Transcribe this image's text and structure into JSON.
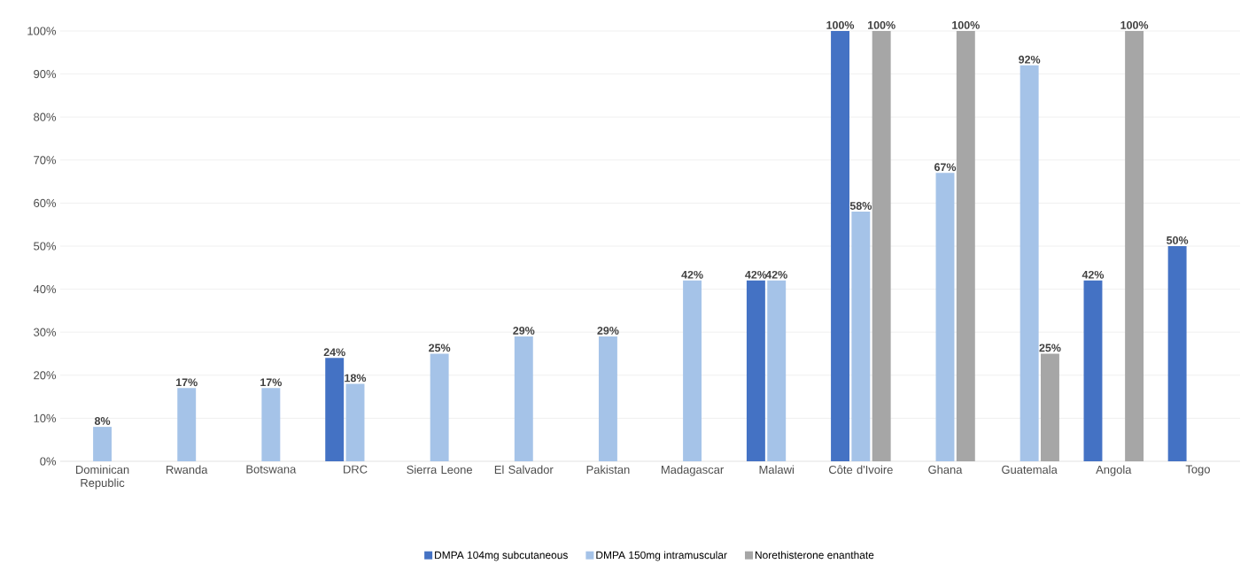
{
  "chart_data": {
    "type": "bar",
    "categories": [
      "Dominican Republic",
      "Rwanda",
      "Botswana",
      "DRC",
      "Sierra Leone",
      "El Salvador",
      "Pakistan",
      "Madagascar",
      "Malawi",
      "Côte d'Ivoire",
      "Ghana",
      "Guatemala",
      "Angola",
      "Togo"
    ],
    "series": [
      {
        "name": "DMPA 104mg subcutaneous",
        "color": "#4472c4",
        "values": [
          null,
          null,
          null,
          24,
          null,
          null,
          null,
          null,
          42,
          100,
          null,
          null,
          42,
          50
        ],
        "value_labels": [
          null,
          null,
          null,
          "24%",
          null,
          null,
          null,
          null,
          "42%",
          "100%",
          null,
          null,
          "42%",
          "50%"
        ]
      },
      {
        "name": "DMPA 150mg intramuscular",
        "color": "#a5c3e8",
        "values": [
          8,
          17,
          17,
          18,
          25,
          29,
          29,
          42,
          42,
          58,
          67,
          92,
          null,
          null
        ],
        "value_labels": [
          "8%",
          "17%",
          "17%",
          "18%",
          "25%",
          "29%",
          "29%",
          "42%",
          "42%",
          "58%",
          "67%",
          "92%",
          null,
          null
        ]
      },
      {
        "name": "Norethisterone enanthate",
        "color": "#a6a6a6",
        "values": [
          null,
          null,
          null,
          null,
          null,
          null,
          null,
          null,
          null,
          100,
          100,
          25,
          100,
          null
        ],
        "value_labels": [
          null,
          null,
          null,
          null,
          null,
          null,
          null,
          null,
          null,
          "100%",
          "100%",
          "25%",
          "100%",
          null
        ]
      }
    ],
    "ylim": [
      0,
      100
    ],
    "yticks": [
      {
        "value": 0,
        "label": "0%"
      },
      {
        "value": 10,
        "label": "10%"
      },
      {
        "value": 20,
        "label": "20%"
      },
      {
        "value": 30,
        "label": "30%"
      },
      {
        "value": 40,
        "label": "40%"
      },
      {
        "value": 50,
        "label": "50%"
      },
      {
        "value": 60,
        "label": "60%"
      },
      {
        "value": 70,
        "label": "70%"
      },
      {
        "value": 80,
        "label": "80%"
      },
      {
        "value": 90,
        "label": "90%"
      },
      {
        "value": 100,
        "label": "100%"
      }
    ],
    "grid": "y",
    "legend": "bottom"
  }
}
